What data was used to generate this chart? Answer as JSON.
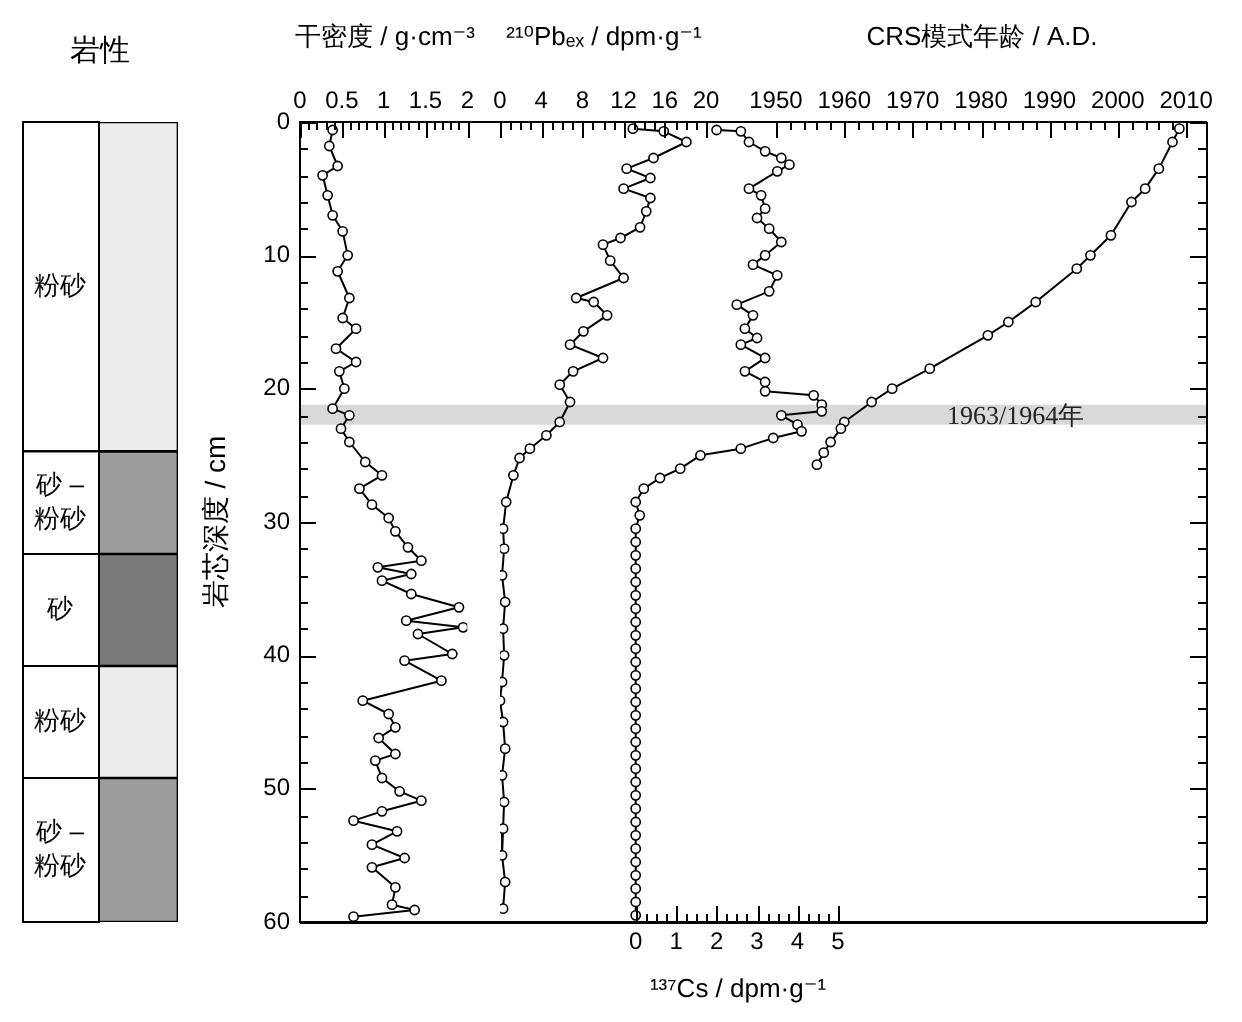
{
  "chart_data": [
    {
      "type": "bar",
      "title": "岩性",
      "categories": [
        null
      ],
      "stacked": true,
      "ylim": [
        60,
        0
      ],
      "tick_labels": false,
      "series": [
        {
          "name": "粉砂",
          "color": "#ececec",
          "values": [
            24.7
          ]
        },
        {
          "name": "砂 – 粉砂",
          "color": "#9c9c9c",
          "values": [
            7.7
          ]
        },
        {
          "name": "砂",
          "color": "#7a7a7a",
          "values": [
            8.4
          ]
        },
        {
          "name": "粉砂",
          "color": "#ececec",
          "values": [
            8.4
          ]
        },
        {
          "name": "砂 – 粉砂",
          "color": "#9c9c9c",
          "values": [
            10.8
          ]
        }
      ]
    },
    {
      "type": "line",
      "ylabel": "岩芯深度 / cm",
      "xlabel": "干密度 / g·cm⁻³",
      "xlim": [
        0,
        2
      ],
      "xticks": [
        0,
        {
          "value": 0.1,
          "label": null
        },
        {
          "value": 0.2,
          "label": null
        },
        {
          "value": 0.3,
          "label": null
        },
        {
          "value": 0.4,
          "label": null
        },
        0.5,
        {
          "value": 0.6,
          "label": null
        },
        {
          "value": 0.7,
          "label": null
        },
        {
          "value": 0.8,
          "label": null
        },
        {
          "value": 0.9,
          "label": null
        },
        1,
        {
          "value": 1.1,
          "label": null
        },
        {
          "value": 1.2,
          "label": null
        },
        {
          "value": 1.3,
          "label": null
        },
        {
          "value": 1.4,
          "label": null
        },
        1.5,
        {
          "value": 1.6,
          "label": null
        },
        {
          "value": 1.7,
          "label": null
        },
        {
          "value": 1.8,
          "label": null
        },
        {
          "value": 1.9,
          "label": null
        },
        2
      ],
      "ylim": [
        60,
        0
      ],
      "yticks": [
        0,
        {
          "value": 2,
          "label": null
        },
        {
          "value": 4,
          "label": null
        },
        {
          "value": 6,
          "label": null
        },
        {
          "value": 8,
          "label": null
        },
        10,
        {
          "value": 12,
          "label": null
        },
        {
          "value": 14,
          "label": null
        },
        {
          "value": 16,
          "label": null
        },
        {
          "value": 18,
          "label": null
        },
        20,
        {
          "value": 22,
          "label": null
        },
        {
          "value": 24,
          "label": null
        },
        {
          "value": 26,
          "label": null
        },
        {
          "value": 28,
          "label": null
        },
        30,
        {
          "value": 32,
          "label": null
        },
        {
          "value": 34,
          "label": null
        },
        {
          "value": 36,
          "label": null
        },
        {
          "value": 38,
          "label": null
        },
        40,
        {
          "value": 42,
          "label": null
        },
        {
          "value": 44,
          "label": null
        },
        {
          "value": 46,
          "label": null
        },
        {
          "value": 48,
          "label": null
        },
        50,
        {
          "value": 52,
          "label": null
        },
        {
          "value": 54,
          "label": null
        },
        {
          "value": 56,
          "label": null
        },
        {
          "value": 58,
          "label": null
        },
        60
      ],
      "marker": "circle",
      "series": [
        {
          "color": "#000000",
          "x": [
            0.39,
            0.35,
            0.45,
            0.27,
            0.33,
            0.39,
            0.51,
            0.57,
            0.45,
            0.59,
            0.51,
            0.67,
            0.43,
            0.67,
            0.47,
            0.53,
            0.39,
            0.59,
            0.49,
            0.59,
            0.78,
            0.98,
            0.71,
            0.86,
            1.06,
            1.14,
            1.29,
            1.45,
            0.93,
            1.33,
            0.98,
            1.33,
            1.9,
            1.27,
            1.95,
            1.41,
            1.82,
            1.25,
            1.69,
            0.75,
            1.06,
            1.14,
            0.94,
            1.14,
            0.9,
            0.98,
            1.19,
            1.45,
            0.98,
            0.64,
            1.16,
            0.86,
            1.25,
            0.86,
            1.14,
            1.1,
            1.37,
            0.64
          ],
          "values": [
            0.6,
            1.8,
            3.3,
            4,
            5.5,
            7,
            8.2,
            10,
            11.2,
            13.2,
            14.7,
            15.5,
            17,
            18,
            18.7,
            20,
            21.5,
            22,
            23,
            24,
            25.5,
            26.5,
            27.5,
            28.7,
            29.7,
            30.7,
            31.9,
            32.9,
            33.4,
            33.9,
            34.4,
            35.4,
            36.4,
            37.4,
            37.9,
            38.4,
            39.9,
            40.4,
            41.9,
            43.4,
            44.4,
            45.4,
            46.2,
            47.4,
            47.9,
            49.2,
            50.2,
            50.9,
            51.7,
            52.4,
            53.2,
            54.2,
            55.2,
            55.9,
            57.4,
            58.7,
            59.1,
            59.6
          ]
        }
      ]
    },
    {
      "type": "line",
      "xlabel": "²¹⁰Pbₑₓ / dpm·g⁻¹",
      "xlim": [
        0,
        20
      ],
      "xticks": [
        0,
        {
          "value": 1,
          "label": null
        },
        {
          "value": 2,
          "label": null
        },
        {
          "value": 3,
          "label": null
        },
        4,
        {
          "value": 5,
          "label": null
        },
        {
          "value": 6,
          "label": null
        },
        {
          "value": 7,
          "label": null
        },
        8,
        {
          "value": 9,
          "label": null
        },
        {
          "value": 10,
          "label": null
        },
        {
          "value": 11,
          "label": null
        },
        12,
        {
          "value": 13,
          "label": null
        },
        {
          "value": 14,
          "label": null
        },
        {
          "value": 15,
          "label": null
        },
        16,
        {
          "value": 17,
          "label": null
        },
        {
          "value": 18,
          "label": null
        },
        {
          "value": 19,
          "label": null
        },
        20
      ],
      "ylim": [
        60,
        0
      ],
      "tick_labels": "x",
      "marker": "circle",
      "series": [
        {
          "color": "#000000",
          "x": [
            12.9,
            15.9,
            18.1,
            14.9,
            12.3,
            14.6,
            12,
            14.6,
            14.2,
            13.6,
            11.7,
            10,
            10.7,
            12,
            7.4,
            9.1,
            10.4,
            8.1,
            6.8,
            10,
            7.1,
            5.8,
            6.8,
            5.8,
            4.5,
            2.9,
            1.9,
            1.3,
            0.6,
            0.3,
            0.4,
            0.2,
            0.5,
            0.3,
            0.4,
            0.2,
            0,
            0.3,
            0.5,
            0.2,
            0.4,
            0.3,
            0.2,
            0.5,
            0.3
          ],
          "values": [
            0.5,
            0.7,
            1.5,
            2.7,
            3.5,
            4.2,
            5,
            5.7,
            6.7,
            7.9,
            8.7,
            9.2,
            10.4,
            11.7,
            13.2,
            13.5,
            14.5,
            15.7,
            16.7,
            17.7,
            18.7,
            19.7,
            21,
            22.5,
            23.5,
            24.5,
            25.2,
            26.5,
            28.5,
            30.5,
            32,
            34,
            36,
            38,
            40,
            42,
            43.4,
            45,
            47,
            49,
            51,
            53,
            55,
            57,
            59
          ]
        }
      ]
    },
    {
      "type": "line",
      "xlabel": "¹³⁷Cs / dpm·g⁻¹",
      "x2label": "CRS模式年龄 / A.D.",
      "xlim": [
        -8.3,
        14.1
      ],
      "xticks": [
        0,
        {
          "value": 0.25,
          "label": null
        },
        {
          "value": 0.5,
          "label": null
        },
        {
          "value": 0.75,
          "label": null
        },
        1,
        {
          "value": 1.25,
          "label": null
        },
        {
          "value": 1.5,
          "label": null
        },
        {
          "value": 1.75,
          "label": null
        },
        2,
        {
          "value": 2.25,
          "label": null
        },
        {
          "value": 2.5,
          "label": null
        },
        {
          "value": 2.75,
          "label": null
        },
        3,
        {
          "value": 3.25,
          "label": null
        },
        {
          "value": 3.5,
          "label": null
        },
        {
          "value": 3.75,
          "label": null
        },
        4,
        {
          "value": 4.25,
          "label": null
        },
        {
          "value": 4.5,
          "label": null
        },
        {
          "value": 4.75,
          "label": null
        },
        5
      ],
      "x2lim": [
        1880.4,
        2012.9
      ],
      "x2ticks": [
        1950,
        {
          "value": 1952,
          "label": null
        },
        {
          "value": 1954,
          "label": null
        },
        {
          "value": 1956,
          "label": null
        },
        {
          "value": 1958,
          "label": null
        },
        1960,
        {
          "value": 1962,
          "label": null
        },
        {
          "value": 1964,
          "label": null
        },
        {
          "value": 1966,
          "label": null
        },
        {
          "value": 1968,
          "label": null
        },
        1970,
        {
          "value": 1972,
          "label": null
        },
        {
          "value": 1974,
          "label": null
        },
        {
          "value": 1976,
          "label": null
        },
        {
          "value": 1978,
          "label": null
        },
        1980,
        {
          "value": 1982,
          "label": null
        },
        {
          "value": 1984,
          "label": null
        },
        {
          "value": 1986,
          "label": null
        },
        {
          "value": 1988,
          "label": null
        },
        1990,
        {
          "value": 1992,
          "label": null
        },
        {
          "value": 1994,
          "label": null
        },
        {
          "value": 1996,
          "label": null
        },
        {
          "value": 1998,
          "label": null
        },
        2000,
        {
          "value": 2002,
          "label": null
        },
        {
          "value": 2004,
          "label": null
        },
        {
          "value": 2006,
          "label": null
        },
        {
          "value": 2008,
          "label": null
        },
        2010
      ],
      "ylim": [
        60,
        0
      ],
      "yticks": [
        0,
        {
          "value": 2,
          "label": null
        },
        {
          "value": 4,
          "label": null
        },
        {
          "value": 6,
          "label": null
        },
        {
          "value": 8,
          "label": null
        },
        10,
        {
          "value": 12,
          "label": null
        },
        {
          "value": 14,
          "label": null
        },
        {
          "value": 16,
          "label": null
        },
        {
          "value": 18,
          "label": null
        },
        20,
        {
          "value": 22,
          "label": null
        },
        {
          "value": 24,
          "label": null
        },
        {
          "value": 26,
          "label": null
        },
        {
          "value": 28,
          "label": null
        },
        30,
        {
          "value": 32,
          "label": null
        },
        {
          "value": 34,
          "label": null
        },
        {
          "value": 36,
          "label": null
        },
        {
          "value": 38,
          "label": null
        },
        40,
        {
          "value": 42,
          "label": null
        },
        {
          "value": 44,
          "label": null
        },
        {
          "value": 46,
          "label": null
        },
        {
          "value": 48,
          "label": null
        },
        50,
        {
          "value": 52,
          "label": null
        },
        {
          "value": 54,
          "label": null
        },
        {
          "value": 56,
          "label": null
        },
        {
          "value": 58,
          "label": null
        },
        60
      ],
      "tick_labels": "x",
      "marker": "circle",
      "bands": [
        {
          "axis": "y",
          "from": 21.2,
          "to": 22.7,
          "label": "1963/1964年",
          "color": "#d9d9d9"
        }
      ],
      "series": [
        {
          "color": "#000000",
          "x": [
            2.0,
            2.6,
            2.8,
            3.2,
            3.6,
            3.8,
            3.5,
            2.8,
            3.1,
            3.2,
            3.0,
            3.3,
            3.6,
            3.2,
            2.9,
            3.5,
            3.3,
            2.5,
            2.9,
            2.7,
            3.0,
            2.6,
            3.2,
            2.7,
            3.2,
            3.2,
            4.4,
            4.6,
            4.6,
            3.6,
            4.0,
            4.1,
            3.4,
            2.6,
            1.6,
            1.1,
            0.6,
            0.2,
            0,
            0.1,
            0,
            0,
            0,
            0,
            0,
            0,
            0,
            0,
            0,
            0,
            0,
            0,
            0,
            0,
            0,
            0,
            0,
            0,
            0,
            0,
            0,
            0,
            0,
            0,
            0,
            0,
            0,
            0,
            0,
            0
          ],
          "values": [
            0.6,
            0.7,
            1.5,
            2.2,
            2.7,
            3.2,
            3.7,
            5,
            5.5,
            6.5,
            7.2,
            8,
            9,
            10,
            10.7,
            11.5,
            12.7,
            13.7,
            14.5,
            15.5,
            16.2,
            16.7,
            17.7,
            18.7,
            19.5,
            20.2,
            20.5,
            21.2,
            21.7,
            22,
            22.7,
            23.2,
            23.7,
            24.5,
            25,
            26,
            26.7,
            27.5,
            28.5,
            29.5,
            30.5,
            31.5,
            32.5,
            33.5,
            34.5,
            35.5,
            36.5,
            37.5,
            38.5,
            39.5,
            40.5,
            41.5,
            42.5,
            43.5,
            44.5,
            45.5,
            46.5,
            47.5,
            48.5,
            49.5,
            50.5,
            51.5,
            52.5,
            53.5,
            54.5,
            55.5,
            56.5,
            57.5,
            58.5,
            59.5
          ]
        },
        {
          "axis": "x2",
          "color": "#000000",
          "x": [
            2009,
            2008,
            2006,
            2004,
            2002,
            1999,
            1996,
            1994,
            1988,
            1984,
            1981,
            1972.5,
            1967,
            1964,
            1960,
            1959.5,
            1958,
            1957,
            1956
          ],
          "values": [
            0.5,
            1.5,
            3.5,
            5,
            6,
            8.5,
            10,
            11,
            13.5,
            15,
            16,
            18.5,
            20,
            21,
            22.5,
            23,
            24,
            24.8,
            25.7
          ]
        }
      ]
    }
  ]
}
